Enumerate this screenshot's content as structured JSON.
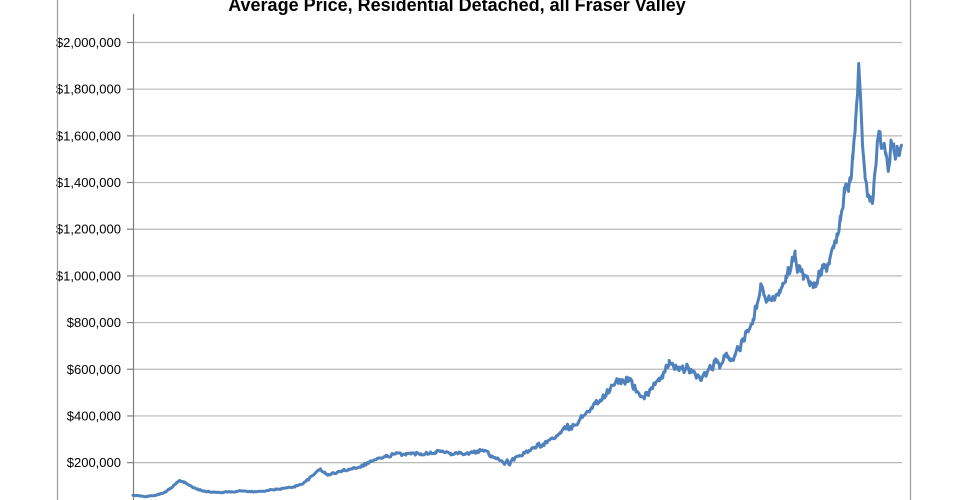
{
  "colors": {
    "line": "#4F81BD",
    "gridline": "#b9b9b9",
    "axis": "#7f7f7f",
    "tick": "#7f7f7f",
    "chart_border": "#9b9b9b",
    "background": "#ffffff",
    "title_text": "#000000",
    "label_text": "#000000"
  },
  "chart_data": {
    "type": "line",
    "title": "Average Price, Residential Detached, all Fraser Valley",
    "legend": "none",
    "grid": true,
    "x_axis": {
      "label": "",
      "note": "time axis; tick labels cropped out of view; x values below are estimated decimal years",
      "range": [
        1978,
        2024.75
      ]
    },
    "y_axis": {
      "label": "",
      "visible_range": [
        200000,
        2000000
      ],
      "ticks": [
        {
          "value": 2000000,
          "label": "$2,000,000"
        },
        {
          "value": 1800000,
          "label": "$1,800,000"
        },
        {
          "value": 1600000,
          "label": "$1,600,000"
        },
        {
          "value": 1400000,
          "label": "$1,400,000"
        },
        {
          "value": 1200000,
          "label": "$1,200,000"
        },
        {
          "value": 1000000,
          "label": "$1,000,000"
        },
        {
          "value": 800000,
          "label": "$800,000"
        },
        {
          "value": 600000,
          "label": "$600,000"
        },
        {
          "value": 400000,
          "label": "$400,000"
        },
        {
          "value": 200000,
          "label": "$200,000"
        }
      ]
    },
    "series": [
      {
        "name": "Average Price",
        "color": "#4F81BD",
        "points": [
          [
            1978.0,
            60000
          ],
          [
            1978.4,
            57000
          ],
          [
            1978.8,
            55000
          ],
          [
            1979.2,
            58000
          ],
          [
            1979.6,
            64000
          ],
          [
            1979.9,
            72000
          ],
          [
            1980.2,
            85000
          ],
          [
            1980.45,
            100000
          ],
          [
            1980.65,
            115000
          ],
          [
            1980.85,
            122000
          ],
          [
            1981.1,
            118000
          ],
          [
            1981.35,
            105000
          ],
          [
            1981.6,
            95000
          ],
          [
            1981.9,
            86000
          ],
          [
            1982.3,
            79000
          ],
          [
            1982.7,
            74000
          ],
          [
            1983.1,
            72000
          ],
          [
            1983.5,
            73000
          ],
          [
            1983.9,
            75000
          ],
          [
            1984.3,
            77000
          ],
          [
            1984.7,
            79000
          ],
          [
            1985.1,
            76000
          ],
          [
            1985.5,
            75000
          ],
          [
            1985.9,
            78000
          ],
          [
            1986.3,
            82000
          ],
          [
            1986.7,
            85000
          ],
          [
            1987.0,
            88000
          ],
          [
            1987.4,
            92000
          ],
          [
            1987.8,
            97000
          ],
          [
            1988.1,
            104000
          ],
          [
            1988.4,
            115000
          ],
          [
            1988.7,
            130000
          ],
          [
            1989.0,
            148000
          ],
          [
            1989.25,
            168000
          ],
          [
            1989.4,
            173000
          ],
          [
            1989.7,
            152000
          ],
          [
            1989.9,
            147000
          ],
          [
            1990.2,
            155000
          ],
          [
            1990.5,
            160000
          ],
          [
            1990.8,
            166000
          ],
          [
            1991.1,
            172000
          ],
          [
            1991.5,
            178000
          ],
          [
            1991.9,
            186000
          ],
          [
            1992.2,
            196000
          ],
          [
            1992.5,
            207000
          ],
          [
            1992.8,
            214000
          ],
          [
            1993.1,
            220000
          ],
          [
            1993.4,
            226000
          ],
          [
            1993.7,
            232000
          ],
          [
            1993.95,
            237000
          ],
          [
            1994.3,
            236000
          ],
          [
            1994.6,
            239000
          ],
          [
            1994.9,
            237000
          ],
          [
            1995.2,
            240000
          ],
          [
            1995.5,
            238000
          ],
          [
            1995.8,
            241000
          ],
          [
            1996.1,
            243000
          ],
          [
            1996.4,
            246000
          ],
          [
            1996.7,
            250000
          ],
          [
            1997.0,
            243000
          ],
          [
            1997.3,
            240000
          ],
          [
            1997.6,
            243000
          ],
          [
            1997.9,
            241000
          ],
          [
            1998.2,
            238000
          ],
          [
            1998.5,
            241000
          ],
          [
            1998.8,
            245000
          ],
          [
            1999.1,
            250000
          ],
          [
            1999.4,
            252000
          ],
          [
            1999.75,
            230000
          ],
          [
            2000.0,
            222000
          ],
          [
            2000.2,
            218000
          ],
          [
            2000.45,
            205000
          ],
          [
            2000.6,
            194000
          ],
          [
            2000.75,
            212000
          ],
          [
            2000.9,
            190000
          ],
          [
            2001.05,
            213000
          ],
          [
            2001.2,
            217000
          ],
          [
            2001.5,
            228000
          ],
          [
            2001.8,
            240000
          ],
          [
            2002.1,
            250000
          ],
          [
            2002.4,
            262000
          ],
          [
            2002.6,
            278000
          ],
          [
            2002.8,
            272000
          ],
          [
            2003.0,
            280000
          ],
          [
            2003.2,
            290000
          ],
          [
            2003.5,
            305000
          ],
          [
            2003.8,
            315000
          ],
          [
            2004.0,
            326000
          ],
          [
            2004.25,
            345000
          ],
          [
            2004.4,
            357000
          ],
          [
            2004.55,
            342000
          ],
          [
            2004.8,
            360000
          ],
          [
            2005.1,
            378000
          ],
          [
            2005.35,
            400000
          ],
          [
            2005.6,
            420000
          ],
          [
            2005.9,
            437000
          ],
          [
            2006.1,
            452000
          ],
          [
            2006.4,
            468000
          ],
          [
            2006.7,
            488000
          ],
          [
            2007.0,
            512000
          ],
          [
            2007.3,
            540000
          ],
          [
            2007.6,
            552000
          ],
          [
            2007.8,
            546000
          ],
          [
            2008.0,
            556000
          ],
          [
            2008.15,
            563000
          ],
          [
            2008.35,
            535000
          ],
          [
            2008.6,
            505000
          ],
          [
            2008.85,
            487000
          ],
          [
            2009.05,
            482000
          ],
          [
            2009.25,
            492000
          ],
          [
            2009.5,
            520000
          ],
          [
            2009.75,
            540000
          ],
          [
            2010.0,
            550000
          ],
          [
            2010.2,
            562000
          ],
          [
            2010.45,
            610000
          ],
          [
            2010.6,
            638000
          ],
          [
            2010.8,
            625000
          ],
          [
            2011.0,
            608000
          ],
          [
            2011.2,
            594000
          ],
          [
            2011.4,
            600000
          ],
          [
            2011.65,
            607000
          ],
          [
            2011.9,
            586000
          ],
          [
            2012.1,
            592000
          ],
          [
            2012.35,
            570000
          ],
          [
            2012.55,
            552000
          ],
          [
            2012.8,
            580000
          ],
          [
            2013.0,
            600000
          ],
          [
            2013.2,
            608000
          ],
          [
            2013.45,
            630000
          ],
          [
            2013.65,
            618000
          ],
          [
            2013.9,
            640000
          ],
          [
            2014.1,
            652000
          ],
          [
            2014.35,
            645000
          ],
          [
            2014.6,
            658000
          ],
          [
            2014.85,
            690000
          ],
          [
            2015.1,
            720000
          ],
          [
            2015.4,
            760000
          ],
          [
            2015.7,
            815000
          ],
          [
            2015.95,
            880000
          ],
          [
            2016.15,
            948000
          ],
          [
            2016.35,
            918000
          ],
          [
            2016.5,
            890000
          ],
          [
            2016.7,
            900000
          ],
          [
            2016.9,
            912000
          ],
          [
            2017.1,
            920000
          ],
          [
            2017.3,
            938000
          ],
          [
            2017.5,
            968000
          ],
          [
            2017.7,
            1000000
          ],
          [
            2017.9,
            1030000
          ],
          [
            2018.1,
            1062000
          ],
          [
            2018.25,
            1090000
          ],
          [
            2018.4,
            1015000
          ],
          [
            2018.55,
            1040000
          ],
          [
            2018.75,
            985000
          ],
          [
            2018.95,
            1000000
          ],
          [
            2019.15,
            958000
          ],
          [
            2019.35,
            950000
          ],
          [
            2019.55,
            968000
          ],
          [
            2019.7,
            1020000
          ],
          [
            2019.85,
            1005000
          ],
          [
            2020.0,
            1050000
          ],
          [
            2020.15,
            1040000
          ],
          [
            2020.35,
            1068000
          ],
          [
            2020.6,
            1120000
          ],
          [
            2020.8,
            1180000
          ],
          [
            2021.0,
            1235000
          ],
          [
            2021.15,
            1290000
          ],
          [
            2021.25,
            1355000
          ],
          [
            2021.4,
            1390000
          ],
          [
            2021.5,
            1370000
          ],
          [
            2021.6,
            1405000
          ],
          [
            2021.75,
            1500000
          ],
          [
            2021.9,
            1620000
          ],
          [
            2022.05,
            1780000
          ],
          [
            2022.12,
            1910000
          ],
          [
            2022.25,
            1730000
          ],
          [
            2022.35,
            1560000
          ],
          [
            2022.5,
            1420000
          ],
          [
            2022.65,
            1340000
          ],
          [
            2022.8,
            1320000
          ],
          [
            2022.95,
            1310000
          ],
          [
            2023.05,
            1400000
          ],
          [
            2023.2,
            1510000
          ],
          [
            2023.35,
            1620000
          ],
          [
            2023.45,
            1575000
          ],
          [
            2023.6,
            1555000
          ],
          [
            2023.75,
            1530000
          ],
          [
            2023.85,
            1490000
          ],
          [
            2023.95,
            1465000
          ],
          [
            2024.1,
            1575000
          ],
          [
            2024.25,
            1540000
          ],
          [
            2024.35,
            1500000
          ],
          [
            2024.45,
            1555000
          ],
          [
            2024.55,
            1520000
          ],
          [
            2024.65,
            1545000
          ],
          [
            2024.72,
            1560000
          ]
        ]
      }
    ]
  }
}
